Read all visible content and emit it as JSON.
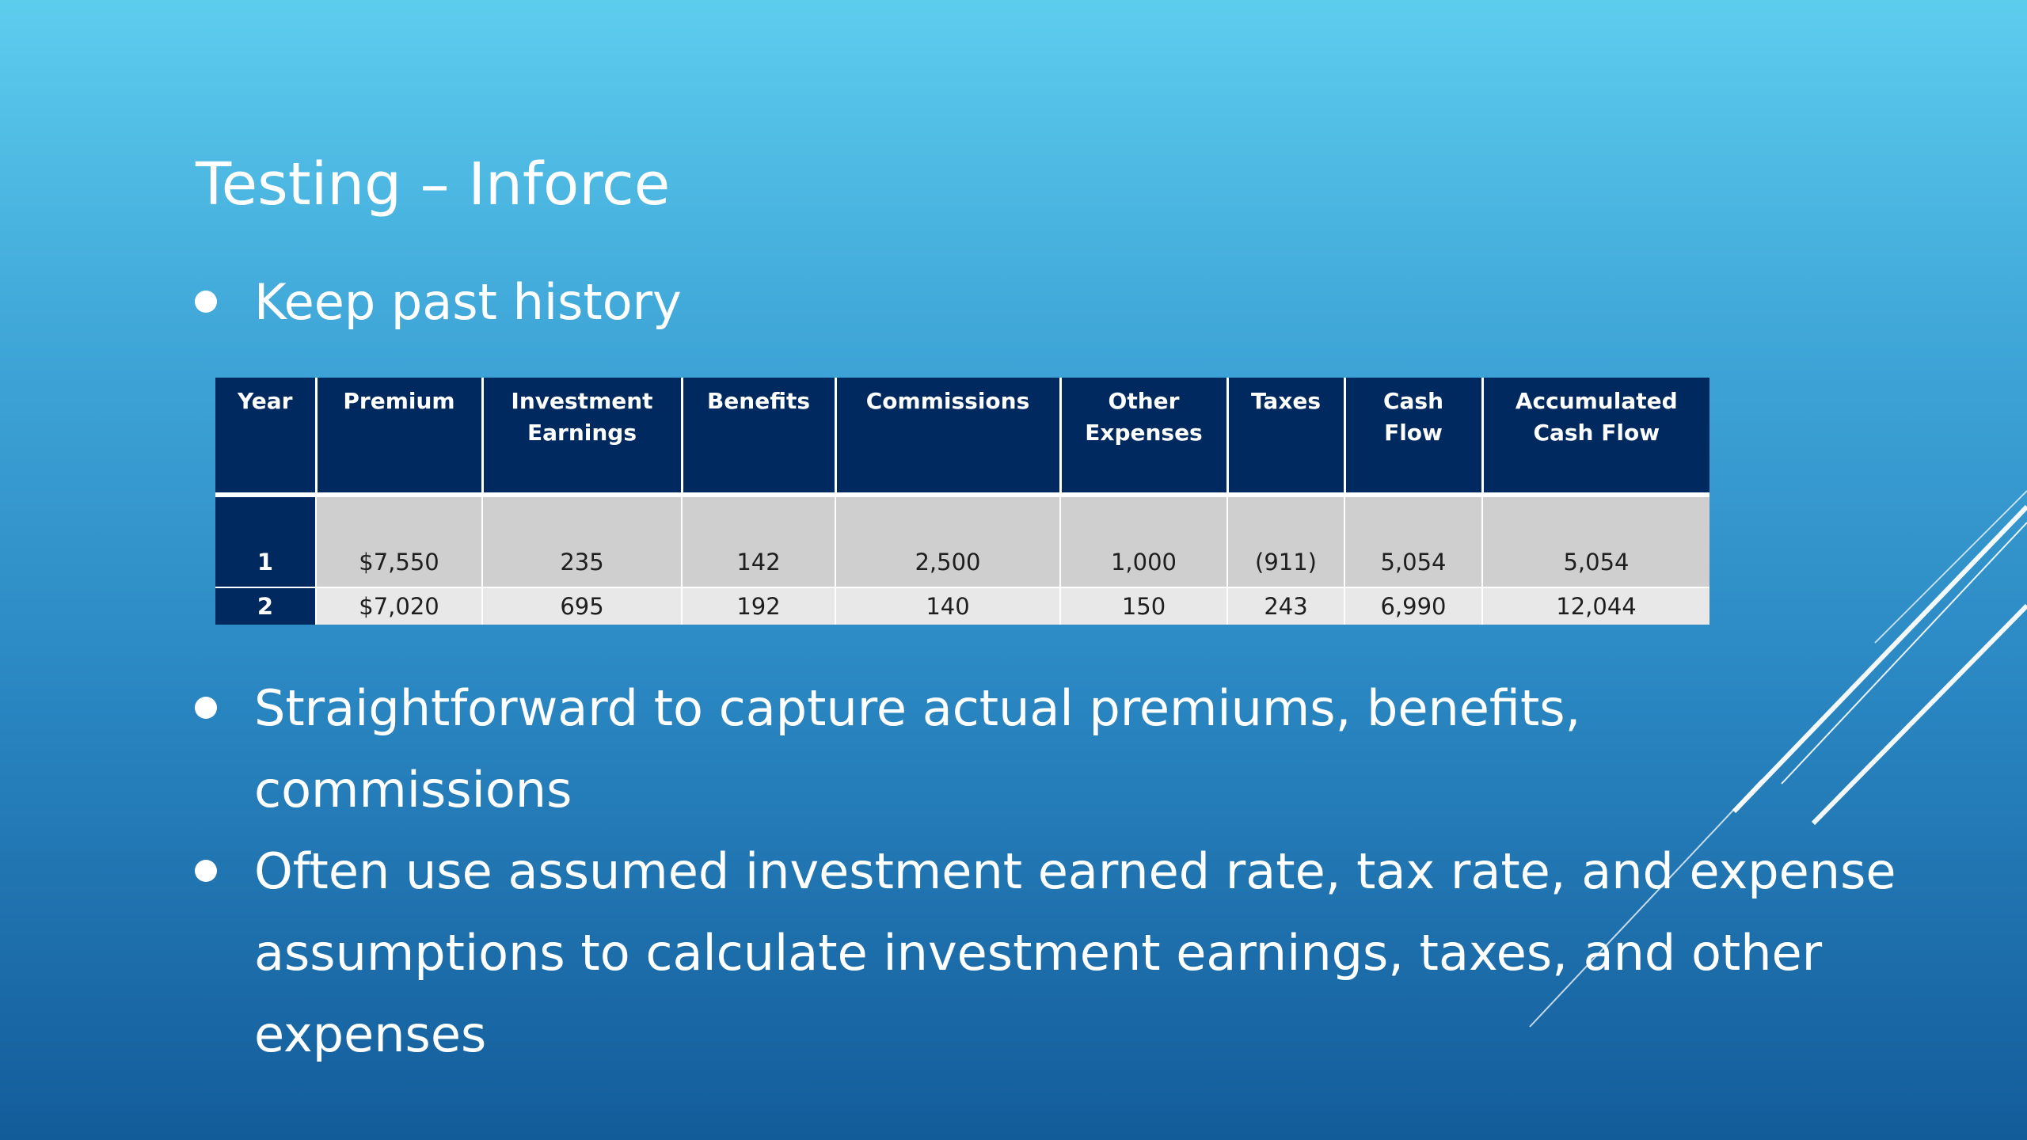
{
  "slide": {
    "title": "Testing – Inforce"
  },
  "bullets": [
    {
      "text": "Keep past history"
    },
    {
      "lines": [
        "Straightforward to capture actual premiums, benefits,",
        "commissions"
      ]
    },
    {
      "lines": [
        "Often use assumed investment earned rate, tax rate, and expense",
        "assumptions to calculate investment earnings, taxes, and other",
        "expenses"
      ]
    }
  ],
  "table": {
    "headers": [
      [
        "Year"
      ],
      [
        "Premium"
      ],
      [
        "Investment",
        "Earnings"
      ],
      [
        "Benefits"
      ],
      [
        "Commissions"
      ],
      [
        "Other",
        "Expenses"
      ],
      [
        "Taxes"
      ],
      [
        "Cash Flow"
      ],
      [
        "Accumulated",
        "Cash Flow"
      ]
    ],
    "rows": [
      [
        "1",
        "$7,550",
        "235",
        "142",
        "2,500",
        "1,000",
        "(911)",
        "5,054",
        "5,054"
      ],
      [
        "2",
        "$7,020",
        "695",
        "192",
        "140",
        "150",
        "243",
        "6,990",
        "12,044"
      ]
    ]
  },
  "colors": {
    "header_navy": "#00295f",
    "row1_gray": "#cfcfcf",
    "row2_gray": "#e8e8e8",
    "text_white": "#ffffff"
  }
}
